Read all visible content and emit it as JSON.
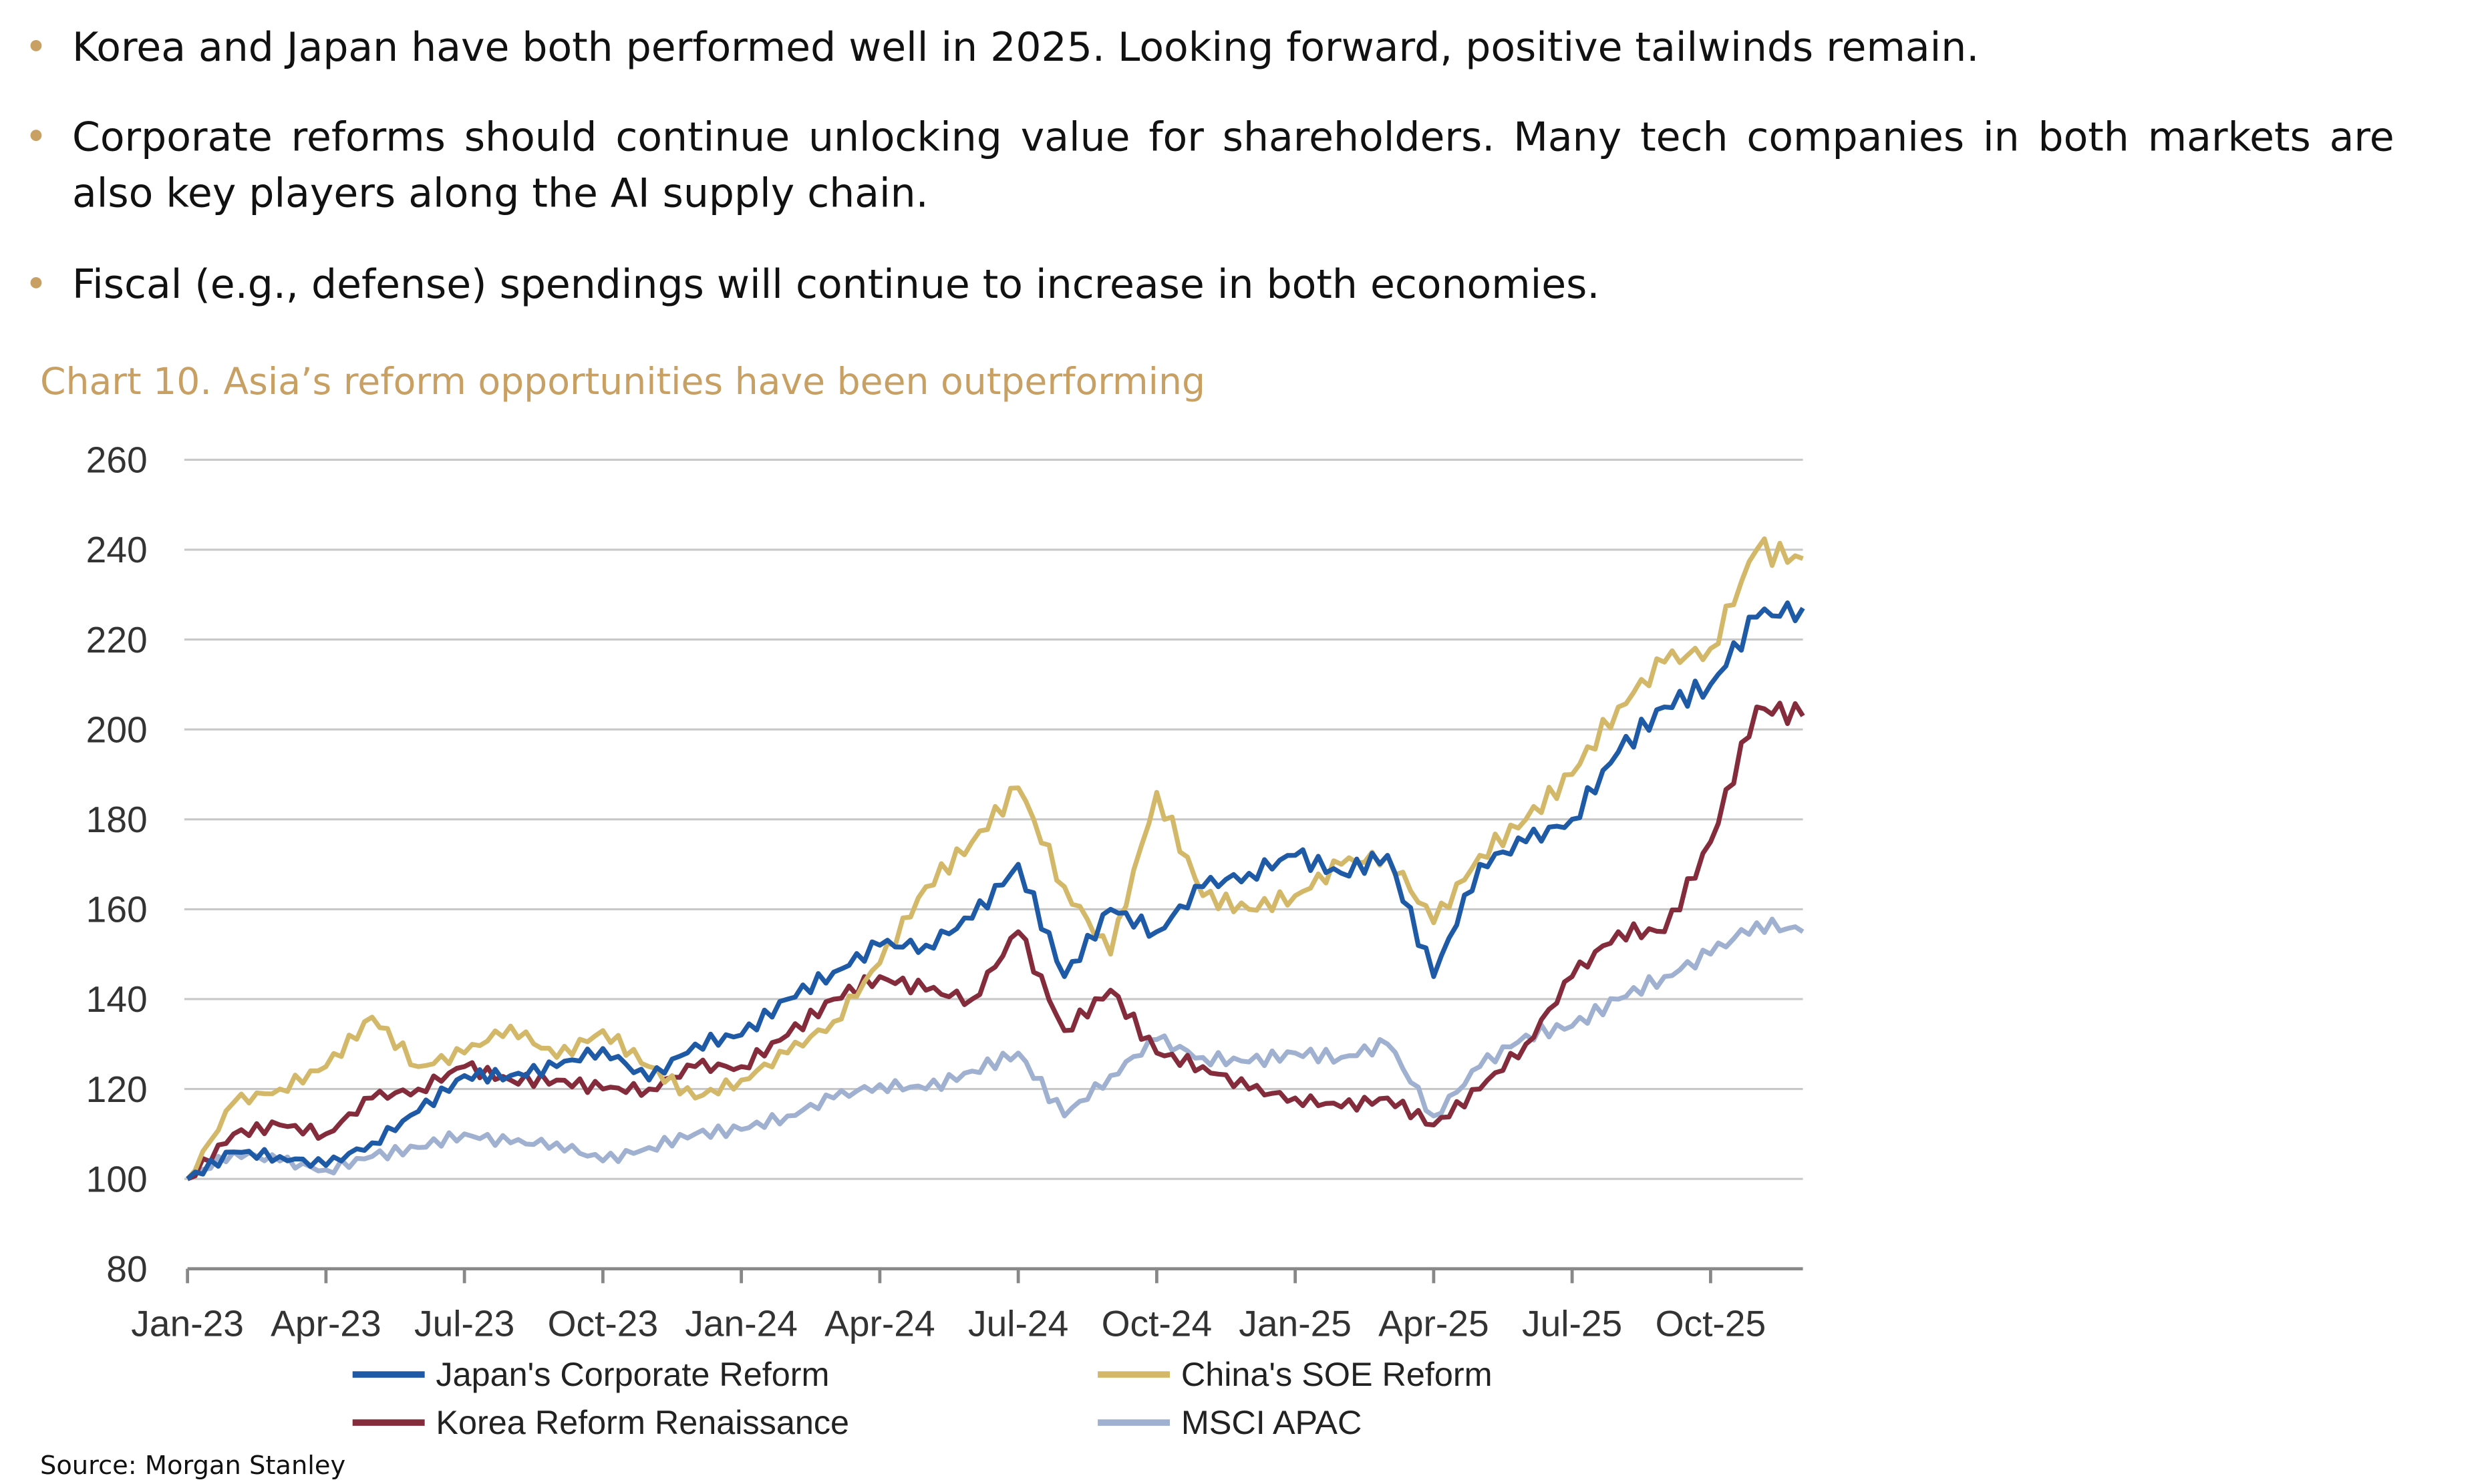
{
  "bullets": [
    "Korea and Japan have both performed well in 2025. Looking forward, positive tailwinds remain.",
    "Corporate reforms should continue unlocking value for shareholders. Many tech companies in both markets are also key players along the AI supply chain.",
    "Fiscal (e.g., defense) spendings will continue to increase in both economies."
  ],
  "colors": {
    "bullet": "#c9a063",
    "title": "#c9a063"
  },
  "chart_data": {
    "type": "line",
    "title": "Chart 10. Asia’s reform opportunities have been outperforming",
    "source": "Source: Morgan Stanley",
    "ylim": [
      80,
      260
    ],
    "yticks": [
      80,
      100,
      120,
      140,
      160,
      180,
      200,
      220,
      240,
      260
    ],
    "xtick_labels": [
      "Jan-23",
      "Apr-23",
      "Jul-23",
      "Oct-23",
      "Jan-24",
      "Apr-24",
      "Jul-24",
      "Oct-24",
      "Jan-25",
      "Apr-25",
      "Jul-25",
      "Oct-25"
    ],
    "x": [
      "Jan-23",
      "Feb-23",
      "Mar-23",
      "Apr-23",
      "May-23",
      "Jun-23",
      "Jul-23",
      "Aug-23",
      "Sep-23",
      "Oct-23",
      "Nov-23",
      "Dec-23",
      "Jan-24",
      "Feb-24",
      "Mar-24",
      "Apr-24",
      "May-24",
      "Jun-24",
      "Jul-24",
      "Aug-24",
      "Sep-24",
      "Oct-24",
      "Nov-24",
      "Dec-24",
      "Jan-25",
      "Feb-25",
      "Mar-25",
      "Apr-25",
      "May-25",
      "Jun-25",
      "Jul-25",
      "Aug-25",
      "Sep-25",
      "Oct-25",
      "Nov-25",
      "Dec-25"
    ],
    "grid": true,
    "legend": "bottom",
    "series": [
      {
        "name": "Japan's Corporate Reform",
        "color": "#1f5aa6",
        "values": [
          100,
          106,
          105,
          103,
          108,
          115,
          123,
          123,
          125,
          129,
          122,
          130,
          132,
          140,
          146,
          152,
          152,
          158,
          170,
          145,
          160,
          155,
          165,
          168,
          172,
          168,
          172,
          145,
          170,
          175,
          180,
          195,
          205,
          210,
          225,
          227
        ]
      },
      {
        "name": "China's SOE Reform",
        "color": "#d4b86a",
        "values": [
          100,
          117,
          120,
          125,
          136,
          125,
          128,
          134,
          127,
          133,
          125,
          118,
          122,
          128,
          135,
          148,
          165,
          175,
          187,
          165,
          150,
          186,
          163,
          160,
          163,
          170,
          172,
          157,
          172,
          180,
          190,
          205,
          215,
          218,
          240,
          238
        ]
      },
      {
        "name": "Korea Reform Renaissance",
        "color": "#842c3c",
        "values": [
          100,
          110,
          112,
          110,
          118,
          120,
          125,
          122,
          122,
          120,
          120,
          125,
          125,
          132,
          140,
          145,
          142,
          140,
          155,
          133,
          142,
          128,
          125,
          120,
          118,
          116,
          118,
          112,
          120,
          130,
          145,
          155,
          155,
          175,
          205,
          203
        ]
      },
      {
        "name": "MSCI APAC",
        "color": "#9fb0d0",
        "values": [
          100,
          106,
          104,
          102,
          105,
          107,
          110,
          108,
          108,
          104,
          107,
          110,
          111,
          114,
          118,
          121,
          120,
          124,
          128,
          114,
          123,
          131,
          127,
          126,
          128,
          127,
          130,
          114,
          125,
          132,
          134,
          140,
          145,
          150,
          157,
          155
        ]
      }
    ]
  }
}
